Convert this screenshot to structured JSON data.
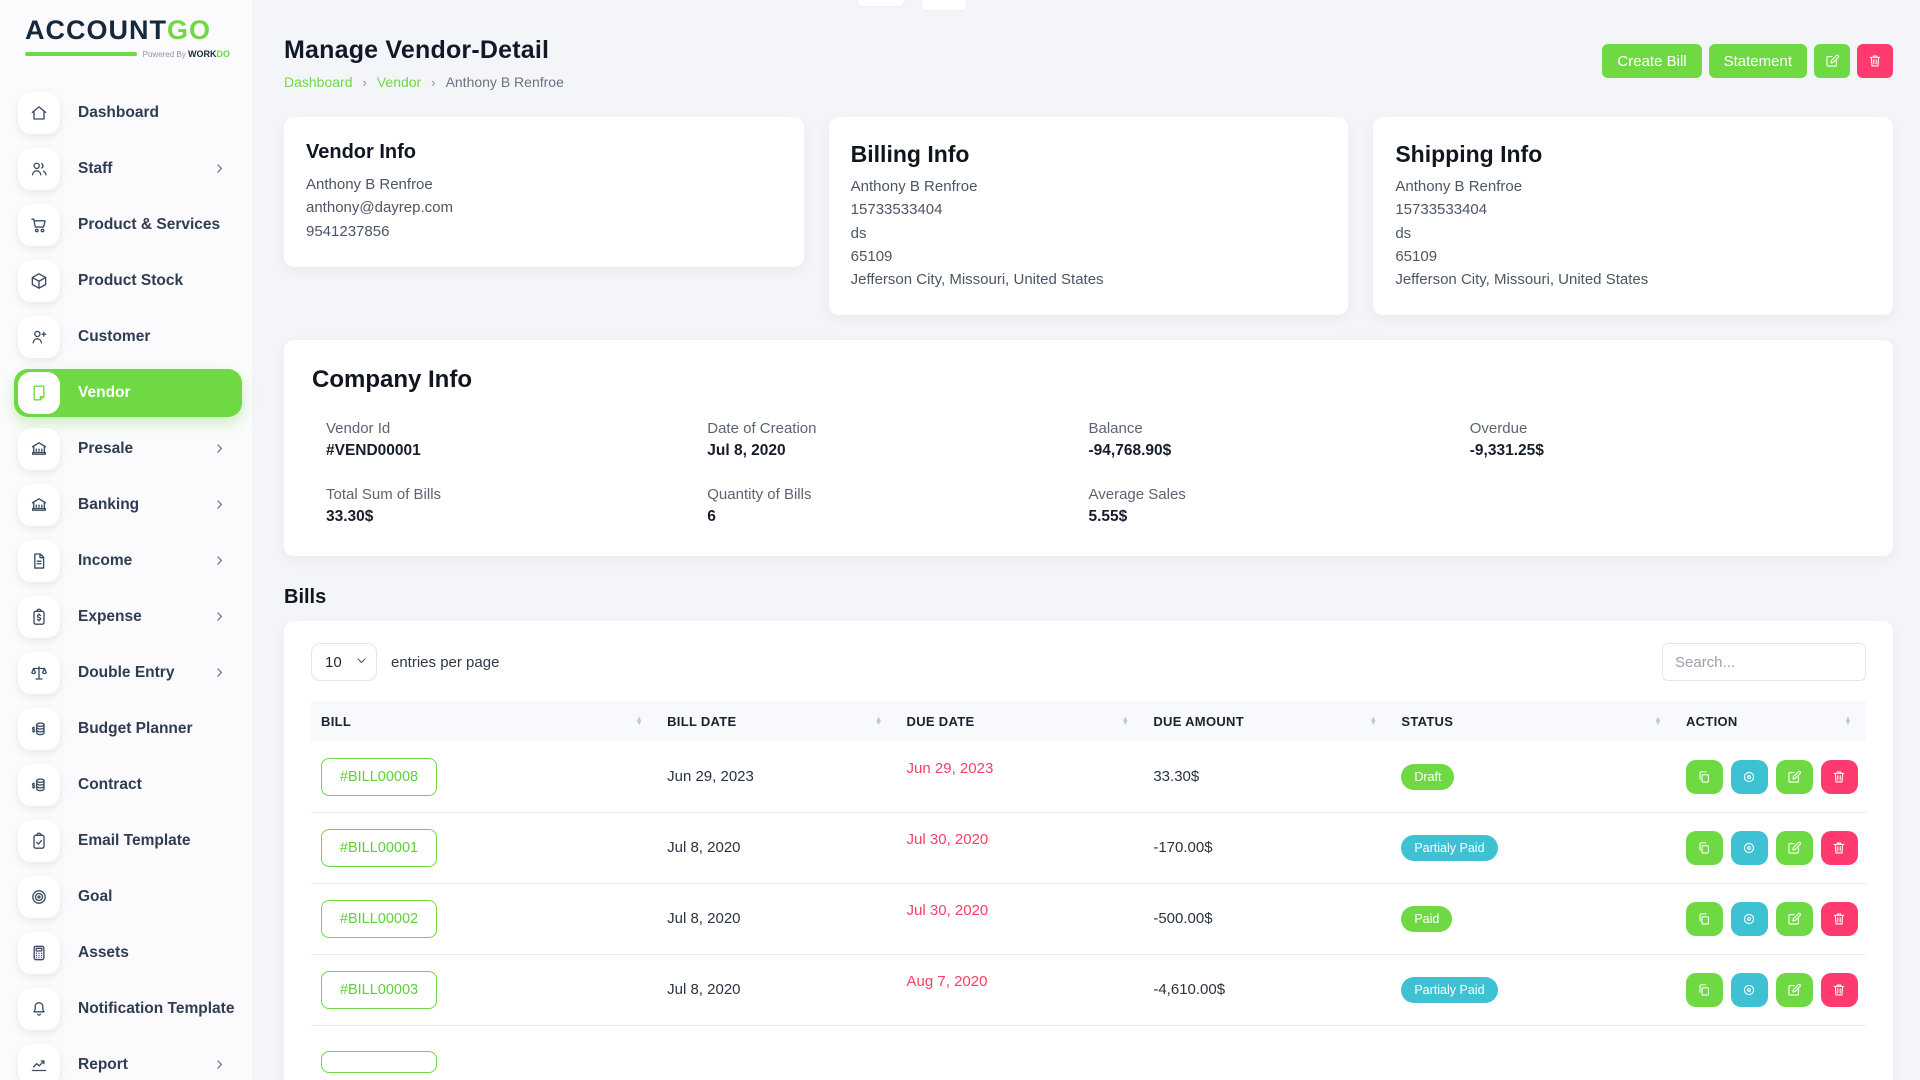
{
  "brand": {
    "primary": "ACCOUNT",
    "accent": "GO",
    "powered_by": "Powered By",
    "powered_brand_dark": "WORK",
    "powered_brand_accent": "DO"
  },
  "colors": {
    "accent_green": "#6fd943",
    "cyan": "#3ec2d3",
    "pink": "#ff3a6e",
    "overdue_red_text": "#fb3e67",
    "dark_navy": "#16283c"
  },
  "sidebar": {
    "items": [
      {
        "label": "Dashboard",
        "icon": "home-icon",
        "active": false,
        "chevron": false
      },
      {
        "label": "Staff",
        "icon": "users-icon",
        "active": false,
        "chevron": true
      },
      {
        "label": "Product & Services",
        "icon": "cart-icon",
        "active": false,
        "chevron": false
      },
      {
        "label": "Product Stock",
        "icon": "cube-icon",
        "active": false,
        "chevron": false
      },
      {
        "label": "Customer",
        "icon": "user-plus-icon",
        "active": false,
        "chevron": false
      },
      {
        "label": "Vendor",
        "icon": "note-icon",
        "active": true,
        "chevron": false
      },
      {
        "label": "Presale",
        "icon": "bank-icon",
        "active": false,
        "chevron": true
      },
      {
        "label": "Banking",
        "icon": "bank-icon",
        "active": false,
        "chevron": true
      },
      {
        "label": "Income",
        "icon": "document-icon",
        "active": false,
        "chevron": true
      },
      {
        "label": "Expense",
        "icon": "clipboard-dollar-icon",
        "active": false,
        "chevron": true
      },
      {
        "label": "Double Entry",
        "icon": "scales-icon",
        "active": false,
        "chevron": true
      },
      {
        "label": "Budget Planner",
        "icon": "coins-dollar-icon",
        "active": false,
        "chevron": false
      },
      {
        "label": "Contract",
        "icon": "coins-dollar-icon",
        "active": false,
        "chevron": false
      },
      {
        "label": "Email Template",
        "icon": "clipboard-check-icon",
        "active": false,
        "chevron": false
      },
      {
        "label": "Goal",
        "icon": "target-icon",
        "active": false,
        "chevron": false
      },
      {
        "label": "Assets",
        "icon": "calculator-icon",
        "active": false,
        "chevron": false
      },
      {
        "label": "Notification Template",
        "icon": "bell-icon",
        "active": false,
        "chevron": false
      },
      {
        "label": "Report",
        "icon": "chart-line-icon",
        "active": false,
        "chevron": true
      }
    ]
  },
  "header": {
    "title": "Manage Vendor-Detail",
    "breadcrumb": [
      {
        "label": "Dashboard",
        "link": true
      },
      {
        "label": "Vendor",
        "link": true
      },
      {
        "label": "Anthony B Renfroe",
        "link": false
      }
    ],
    "actions": {
      "create_bill": "Create Bill",
      "statement": "Statement",
      "edit_icon": "pencil-square-icon",
      "delete_icon": "trash-icon"
    }
  },
  "cards": {
    "vendor_info": {
      "title": "Vendor Info",
      "lines": [
        "Anthony B Renfroe",
        "anthony@dayrep.com",
        "9541237856"
      ]
    },
    "billing_info": {
      "title": "Billing Info",
      "lines": [
        "Anthony B Renfroe",
        "15733533404",
        "ds",
        "65109",
        "Jefferson City, Missouri, United States"
      ]
    },
    "shipping_info": {
      "title": "Shipping Info",
      "lines": [
        "Anthony B Renfroe",
        "15733533404",
        "ds",
        "65109",
        "Jefferson City, Missouri, United States"
      ]
    }
  },
  "company_info": {
    "title": "Company Info",
    "fields": [
      {
        "label": "Vendor Id",
        "value": "#VEND00001"
      },
      {
        "label": "Date of Creation",
        "value": "Jul 8, 2020"
      },
      {
        "label": "Balance",
        "value": "-94,768.90$"
      },
      {
        "label": "Overdue",
        "value": "-9,331.25$"
      },
      {
        "label": "Total Sum of Bills",
        "value": "33.30$"
      },
      {
        "label": "Quantity of Bills",
        "value": "6"
      },
      {
        "label": "Average Sales",
        "value": "5.55$"
      }
    ]
  },
  "bills": {
    "title": "Bills",
    "entries_per_page": {
      "value": "10",
      "label": "entries per page"
    },
    "search_placeholder": "Search...",
    "columns": [
      "BILL",
      "BILL DATE",
      "DUE DATE",
      "DUE AMOUNT",
      "STATUS",
      "ACTION"
    ],
    "row_actions": [
      {
        "name": "duplicate",
        "icon": "copy-icon",
        "color": "green"
      },
      {
        "name": "view",
        "icon": "eye-icon",
        "color": "cyan"
      },
      {
        "name": "edit",
        "icon": "pencil-square-icon",
        "color": "green"
      },
      {
        "name": "delete",
        "icon": "trash-icon",
        "color": "pink"
      }
    ],
    "rows": [
      {
        "bill": "#BILL00008",
        "bill_date": "Jun 29, 2023",
        "due_date": "Jun 29, 2023",
        "due_amount": "33.30$",
        "status": "Draft",
        "status_type": "green",
        "partial": false
      },
      {
        "bill": "#BILL00001",
        "bill_date": "Jul 8, 2020",
        "due_date": "Jul 30, 2020",
        "due_amount": "-170.00$",
        "status": "Partialy Paid",
        "status_type": "cyan",
        "partial": false
      },
      {
        "bill": "#BILL00002",
        "bill_date": "Jul 8, 2020",
        "due_date": "Jul 30, 2020",
        "due_amount": "-500.00$",
        "status": "Paid",
        "status_type": "green",
        "partial": false
      },
      {
        "bill": "#BILL00003",
        "bill_date": "Jul 8, 2020",
        "due_date": "Aug 7, 2020",
        "due_amount": "-4,610.00$",
        "status": "Partialy Paid",
        "status_type": "cyan",
        "partial": false
      },
      {
        "bill": "",
        "bill_date": "",
        "due_date": "",
        "due_amount": "",
        "status": "",
        "status_type": "",
        "partial": true
      }
    ]
  }
}
